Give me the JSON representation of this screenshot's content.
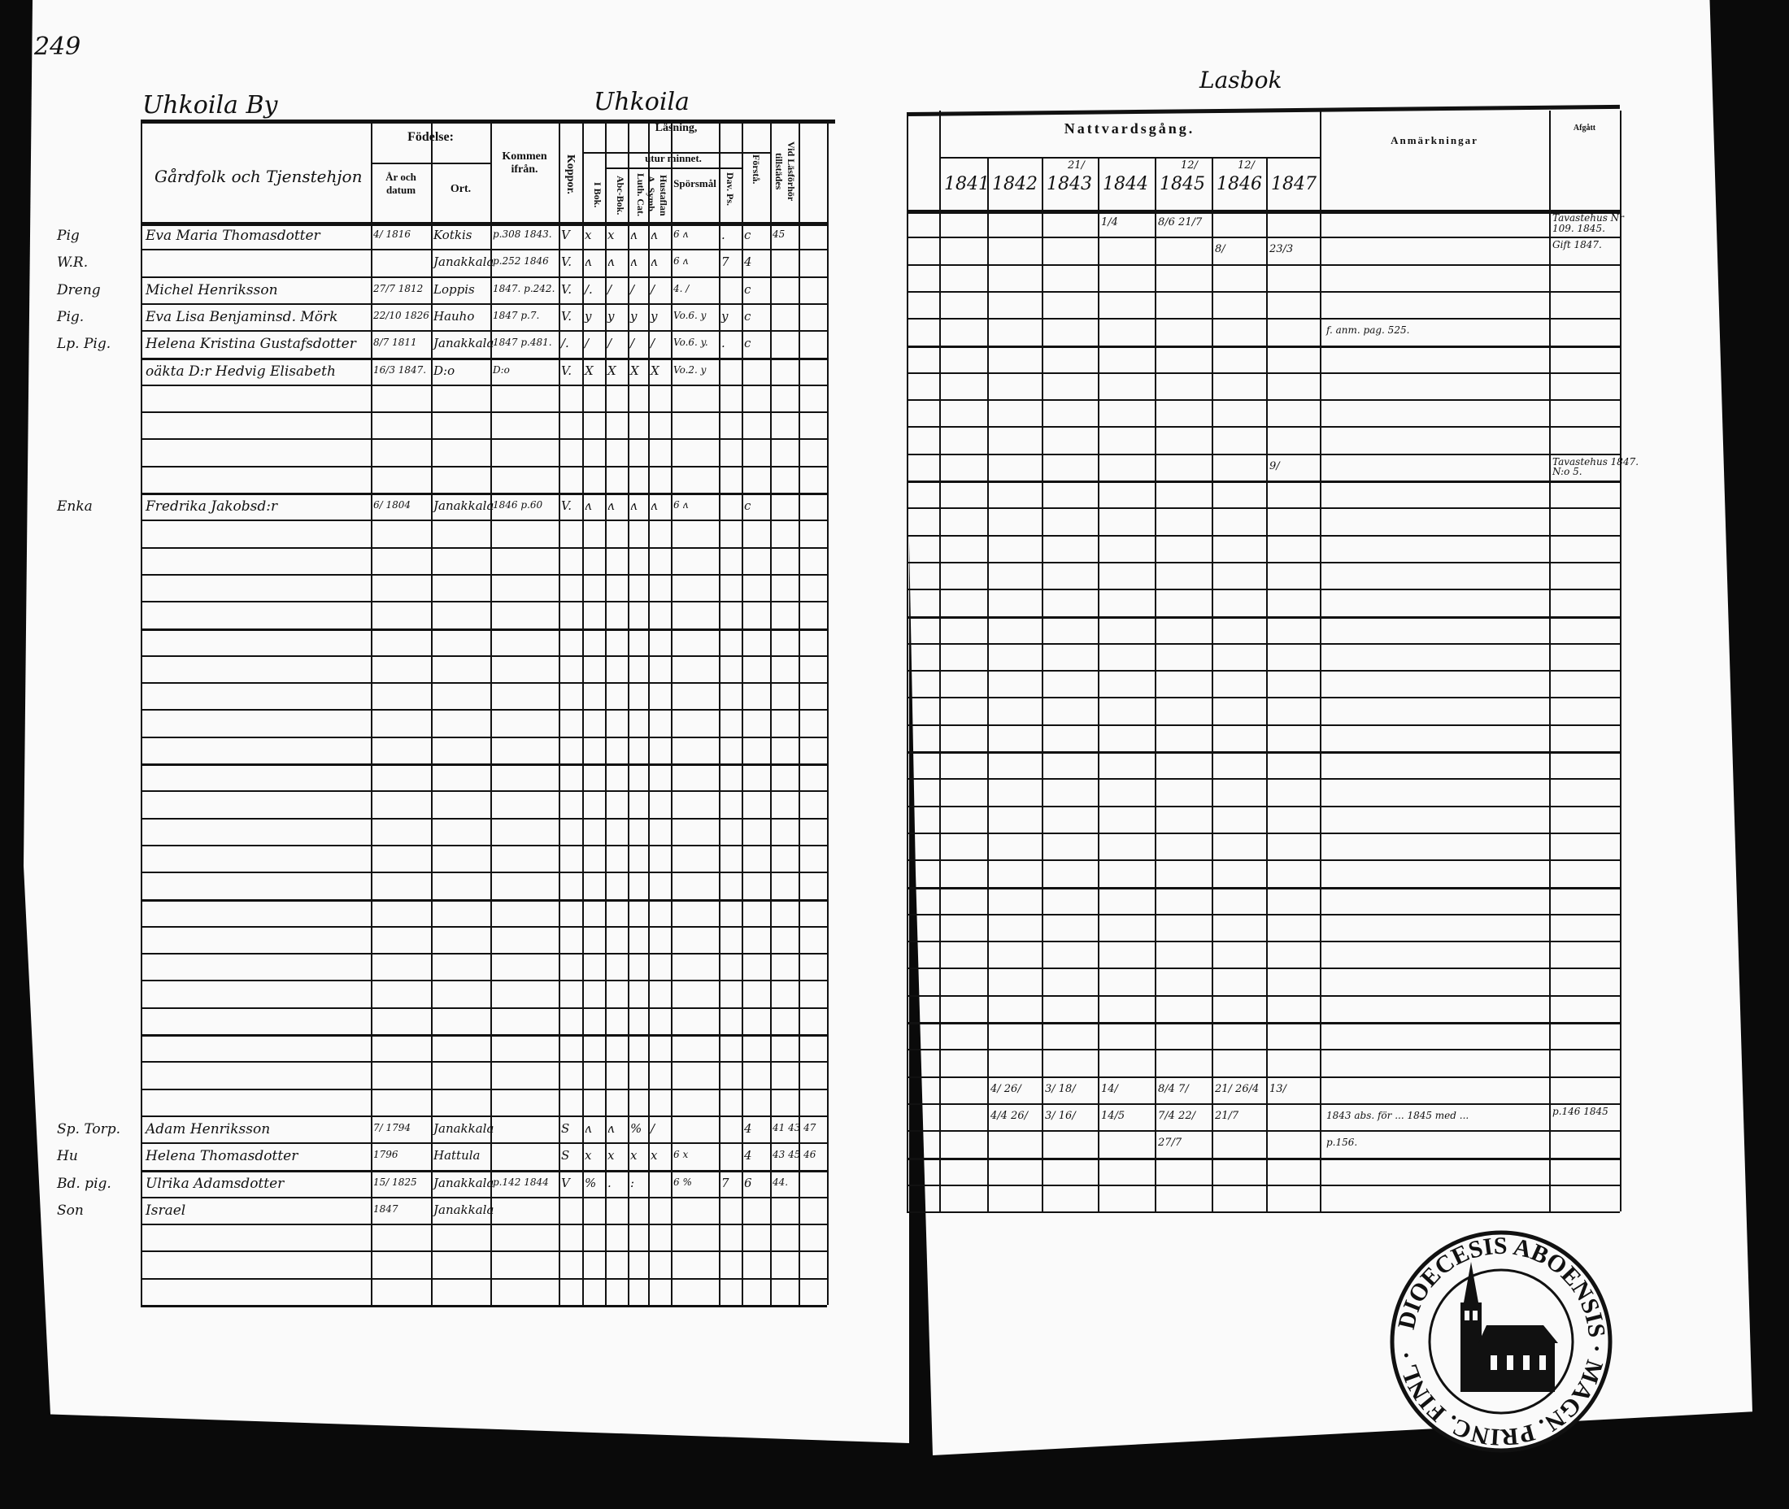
{
  "page_number": "249",
  "left": {
    "village_title": "Uhkoila By",
    "center_title": "Uhkoila",
    "headers": {
      "name": "Gårdfolk och Tjenstehjon",
      "birth": "Födelse:",
      "birth_date": "År och datum",
      "birth_place": "Ort.",
      "from": "Kommen ifrån.",
      "koppor": "Koppor.",
      "reading": "Läsning,",
      "by_heart": "utur minnet.",
      "i_bok": "I Bok.",
      "abc": "Abc-Bok.",
      "luth": "Luth. Cat.",
      "hustaflan": "Hustaflan A. Symb.",
      "sporsmal": "Spörsmål",
      "dav": "Dav. Ps.",
      "forst": "Förstå.",
      "vid": "Vid Läsförhör tillstädes"
    },
    "rows": [
      {
        "prefix": "Pig",
        "name": "Eva Maria Thomasdotter",
        "born_date": "4/ 1816",
        "born_place": "Kotkis",
        "from": "p.308 1843.",
        "koppor": "V",
        "i_bok": "x",
        "abc": "x",
        "luth": "ʌ",
        "hustaflan": "ʌ",
        "sporsmal": "6 ʌ",
        "dav": ".",
        "forst": "c",
        "vid": "45"
      },
      {
        "prefix": "W.R.",
        "name": "",
        "born_date": "",
        "born_place": "Janakkala",
        "from": "p.252 1846",
        "koppor": "V.",
        "i_bok": "ʌ",
        "abc": "ʌ",
        "luth": "ʌ",
        "hustaflan": "ʌ",
        "sporsmal": "6 ʌ",
        "dav": "7",
        "forst": "4",
        "vid": ""
      },
      {
        "prefix": "Dreng",
        "name": "Michel Henriksson",
        "born_date": "27/7 1812",
        "born_place": "Loppis",
        "from": "1847. p.242.",
        "koppor": "V.",
        "i_bok": "/.",
        "abc": "/",
        "luth": "/",
        "hustaflan": "/",
        "sporsmal": "4. /",
        "dav": "",
        "forst": "c",
        "vid": ""
      },
      {
        "prefix": "Pig.",
        "name": "Eva Lisa Benjaminsd. Mörk",
        "born_date": "22/10 1826",
        "born_place": "Hauho",
        "from": "1847 p.7.",
        "koppor": "V.",
        "i_bok": "y",
        "abc": "y",
        "luth": "y",
        "hustaflan": "y",
        "sporsmal": "Vo.6. y",
        "dav": "y",
        "forst": "c",
        "vid": ""
      },
      {
        "prefix": "Lp. Pig.",
        "name": "Helena Kristina Gustafsdotter",
        "born_date": "8/7 1811",
        "born_place": "Janakkala",
        "from": "1847 p.481.",
        "koppor": "/.",
        "i_bok": "/",
        "abc": "/",
        "luth": "/",
        "hustaflan": "/",
        "sporsmal": "Vo.6. y.",
        "dav": ".",
        "forst": "c",
        "vid": ""
      },
      {
        "prefix": "",
        "name": "oäkta D:r Hedvig Elisabeth",
        "born_date": "16/3 1847.",
        "born_place": "D:o",
        "from": "D:o",
        "koppor": "V.",
        "i_bok": "X",
        "abc": "X",
        "luth": "X",
        "hustaflan": "X",
        "sporsmal": "Vo.2. y",
        "dav": "",
        "forst": "",
        "vid": ""
      },
      {},
      {},
      {},
      {},
      {
        "prefix": "Enka",
        "name": "Fredrika Jakobsd:r",
        "born_date": "6/ 1804",
        "born_place": "Janakkala",
        "from": "1846 p.60",
        "koppor": "V.",
        "i_bok": "ʌ",
        "abc": "ʌ",
        "luth": "ʌ",
        "hustaflan": "ʌ",
        "sporsmal": "6 ʌ",
        "dav": "",
        "forst": "c",
        "vid": ""
      },
      {},
      {},
      {},
      {},
      {},
      {},
      {},
      {},
      {},
      {},
      {},
      {},
      {},
      {},
      {},
      {},
      {},
      {},
      {},
      {},
      {},
      {},
      {
        "prefix": "Sp. Torp.",
        "name": "Adam Henriksson",
        "born_date": "7/ 1794",
        "born_place": "Janakkala",
        "from": "",
        "koppor": "S",
        "i_bok": "ʌ",
        "abc": "ʌ",
        "luth": "%",
        "hustaflan": "/",
        "sporsmal": "",
        "dav": "",
        "forst": "4",
        "vid": "41 43 47"
      },
      {
        "prefix": "Hu",
        "name": "Helena Thomasdotter",
        "born_date": "1796",
        "born_place": "Hattula",
        "from": "",
        "koppor": "S",
        "i_bok": "x",
        "abc": "x",
        "luth": "x",
        "hustaflan": "x",
        "sporsmal": "6 x",
        "dav": "",
        "forst": "4",
        "vid": "43 45 46"
      },
      {
        "prefix": "Bd. pig.",
        "name": "Ulrika Adamsdotter",
        "born_date": "15/ 1825",
        "born_place": "Janakkala",
        "from": "p.142 1844",
        "koppor": "V",
        "i_bok": "%",
        "abc": ".",
        "luth": ":",
        "hustaflan": "",
        "sporsmal": "6 %",
        "dav": "7",
        "forst": "6",
        "vid": "44."
      },
      {
        "prefix": "Son",
        "name": "Israel",
        "born_date": "1847",
        "born_place": "Janakkala",
        "from": "",
        "koppor": "",
        "i_bok": "",
        "abc": "",
        "luth": "",
        "hustaflan": "",
        "sporsmal": "",
        "dav": "",
        "forst": "",
        "vid": ""
      },
      {},
      {},
      {}
    ]
  },
  "right": {
    "title": "Lasbok",
    "communion_header": "Nattvardsgång.",
    "years": [
      "1841",
      "1842",
      "1843",
      "1844",
      "1845",
      "1846",
      "1847"
    ],
    "year_notes": [
      "",
      "",
      "21/",
      "",
      "12/",
      "12/",
      ""
    ],
    "remarks_header": "Anmärkningar",
    "moved_header": "Afgått",
    "rows": [
      {
        "c": [
          "",
          "",
          "",
          "1/4",
          "8/6 21/7",
          "",
          ""
        ],
        "anm": "",
        "moved": "Tavastehus Nr 109. 1845."
      },
      {
        "c": [
          "",
          "",
          "",
          "",
          "",
          "8/",
          "23/3"
        ],
        "anm": "",
        "moved": "Gift 1847."
      },
      {},
      {},
      {
        "c": [
          "",
          "",
          "",
          "",
          "",
          "",
          ""
        ],
        "anm": "f. anm. pag. 525.",
        "moved": ""
      },
      {},
      {},
      {},
      {},
      {
        "c": [
          "",
          "",
          "",
          "",
          "",
          "",
          "9/"
        ],
        "anm": "",
        "moved": "Tavastehus 1847. N:o 5."
      },
      {},
      {},
      {},
      {},
      {},
      {},
      {},
      {},
      {},
      {},
      {},
      {},
      {},
      {},
      {},
      {},
      {},
      {},
      {},
      {},
      {},
      {},
      {
        "c": [
          "",
          "4/ 26/",
          "3/ 18/",
          "14/",
          "8/4 7/",
          "21/ 26/4",
          "13/"
        ],
        "anm": "",
        "moved": ""
      },
      {
        "c": [
          "",
          "4/4 26/",
          "3/ 16/",
          "14/5",
          "7/4 22/",
          "21/7",
          ""
        ],
        "anm": "1843 abs. för ... 1845 med ...",
        "moved": "p.146 1845"
      },
      {
        "c": [
          "",
          "",
          "",
          "",
          "27/7",
          "",
          ""
        ],
        "anm": "p.156.",
        "moved": ""
      },
      {},
      {}
    ]
  },
  "stamp": {
    "text": "DIOECESIS ABOENSIS · MAGN. PRINC. FINL ·"
  }
}
